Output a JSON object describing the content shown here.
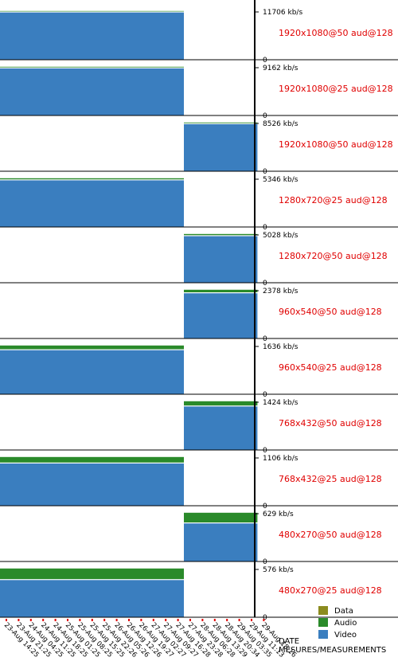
{
  "chart_data": {
    "type": "bar",
    "stacked": true,
    "orientation": "vertical",
    "xlabel": [
      "DATE",
      "MESURES/MEASUREMENTS"
    ],
    "x_dates": [
      "23-Aug 14:25",
      "23-Aug 21:25",
      "24-Aug 04:25",
      "24-Aug 11:25",
      "24-Aug 18:25",
      "25-Aug 01:25",
      "25-Aug 08:25",
      "25-Aug 15:25",
      "25-Aug 22:26",
      "26-Aug 05:26",
      "26-Aug 12:26",
      "26-Aug 19:27",
      "27-Aug 02:27",
      "27-Aug 09:27",
      "27-Aug 16:28",
      "27-Aug 23:28",
      "28-Aug 06:28",
      "28-Aug 13:29",
      "28-Aug 20:34",
      "29-Aug 03:35",
      "29-Aug 11:13",
      "29-Aug 18:16"
    ],
    "colors": {
      "Video": "#3a7ebf",
      "Audio": "#2a8a2a",
      "Data": "#8b8b1e"
    },
    "legend": {
      "position": "bottom-right",
      "entries": [
        "Data",
        "Audio",
        "Video"
      ]
    },
    "panels": [
      {
        "label": "1920x1080@50 aud@128",
        "ymax_label": "11706 kb/s",
        "ymin_label": "0",
        "ymax": 11706,
        "x_range": [
          0,
          15
        ],
        "video": 11578,
        "audio": 128,
        "data": 0
      },
      {
        "label": "1920x1080@25 aud@128",
        "ymax_label": "9162 kb/s",
        "ymin_label": "0",
        "ymax": 9162,
        "x_range": [
          0,
          15
        ],
        "video": 9034,
        "audio": 128,
        "data": 0
      },
      {
        "label": "1920x1080@50 aud@128",
        "ymax_label": "8526 kb/s",
        "ymin_label": "0",
        "ymax": 8526,
        "x_range": [
          15,
          21
        ],
        "video": 8398,
        "audio": 128,
        "data": 0
      },
      {
        "label": "1280x720@25 aud@128",
        "ymax_label": "5346 kb/s",
        "ymin_label": "0",
        "ymax": 5346,
        "x_range": [
          0,
          15
        ],
        "video": 5218,
        "audio": 128,
        "data": 0
      },
      {
        "label": "1280x720@50 aud@128",
        "ymax_label": "5028 kb/s",
        "ymin_label": "0",
        "ymax": 5028,
        "x_range": [
          15,
          21
        ],
        "video": 4900,
        "audio": 128,
        "data": 0
      },
      {
        "label": "960x540@50 aud@128",
        "ymax_label": "2378 kb/s",
        "ymin_label": "0",
        "ymax": 2378,
        "x_range": [
          15,
          21
        ],
        "video": 2250,
        "audio": 128,
        "data": 0
      },
      {
        "label": "960x540@25 aud@128",
        "ymax_label": "1636 kb/s",
        "ymin_label": "0",
        "ymax": 1636,
        "x_range": [
          0,
          15
        ],
        "video": 1508,
        "audio": 128,
        "data": 0
      },
      {
        "label": "768x432@50 aud@128",
        "ymax_label": "1424 kb/s",
        "ymin_label": "0",
        "ymax": 1424,
        "x_range": [
          15,
          21
        ],
        "video": 1296,
        "audio": 128,
        "data": 0
      },
      {
        "label": "768x432@25 aud@128",
        "ymax_label": "1106 kb/s",
        "ymin_label": "0",
        "ymax": 1106,
        "x_range": [
          0,
          15
        ],
        "video": 978,
        "audio": 128,
        "data": 0
      },
      {
        "label": "480x270@50 aud@128",
        "ymax_label": "629 kb/s",
        "ymin_label": "0",
        "ymax": 629,
        "x_range": [
          15,
          21
        ],
        "video": 501,
        "audio": 128,
        "data": 0
      },
      {
        "label": "480x270@25 aud@128",
        "ymax_label": "576 kb/s",
        "ymin_label": "0",
        "ymax": 576,
        "x_range": [
          0,
          15
        ],
        "video": 448,
        "audio": 128,
        "data": 0
      }
    ]
  }
}
